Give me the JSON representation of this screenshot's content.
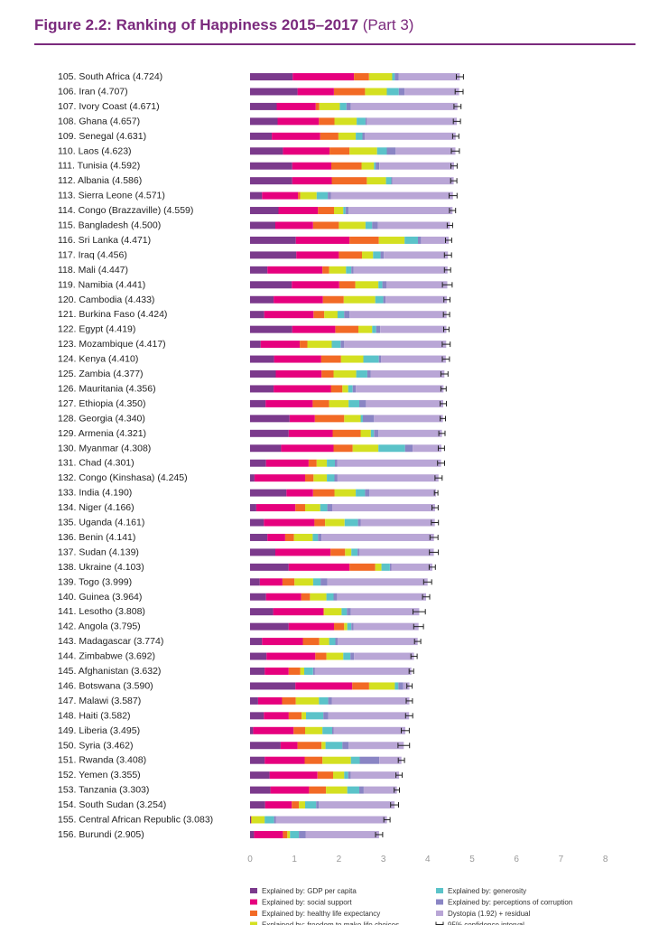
{
  "header": {
    "title_bold": "Figure 2.2: Ranking of Happiness 2015–2017",
    "title_light": "(Part 3)"
  },
  "colors": {
    "gdp": "#7b3a8c",
    "social": "#e6007e",
    "health": "#f26a25",
    "freedom": "#d4e021",
    "generosity": "#5bc3c9",
    "corruption": "#8a85c4",
    "dystopia": "#b9a6d6",
    "ci": "#222222",
    "title": "#7b2a7d"
  },
  "chart_data": {
    "type": "bar",
    "stacked": true,
    "orientation": "horizontal",
    "xlim": [
      0,
      8
    ],
    "xticks": [
      0,
      1,
      2,
      3,
      4,
      5,
      6,
      7,
      8
    ],
    "grid": false,
    "legend_position": "bottom",
    "series_names": [
      "Explained by: GDP per capita",
      "Explained by: social support",
      "Explained by: healthy life expectancy",
      "Explained by: freedom to make life choices",
      "Explained by: generosity",
      "Explained by: perceptions of corruption",
      "Dystopia (1.92) + residual",
      "95% confidence interval"
    ],
    "rows": [
      {
        "label": "105. South Africa (4.724)",
        "score": 4.724,
        "parts": [
          0.96,
          1.38,
          0.34,
          0.52,
          0.06,
          0.09
        ],
        "ci": 0.08
      },
      {
        "label": "106. Iran (4.707)",
        "score": 4.707,
        "parts": [
          1.07,
          0.82,
          0.7,
          0.49,
          0.27,
          0.13
        ],
        "ci": 0.09
      },
      {
        "label": "107. Ivory Coast (4.671)",
        "score": 4.671,
        "parts": [
          0.6,
          0.88,
          0.08,
          0.46,
          0.15,
          0.1
        ],
        "ci": 0.08
      },
      {
        "label": "108. Ghana (4.657)",
        "score": 4.657,
        "parts": [
          0.62,
          0.93,
          0.35,
          0.5,
          0.2,
          0.03
        ],
        "ci": 0.08
      },
      {
        "label": "109. Senegal (4.631)",
        "score": 4.631,
        "parts": [
          0.49,
          1.09,
          0.41,
          0.39,
          0.15,
          0.05
        ],
        "ci": 0.07
      },
      {
        "label": "110. Laos (4.623)",
        "score": 4.623,
        "parts": [
          0.74,
          1.05,
          0.45,
          0.62,
          0.22,
          0.2
        ],
        "ci": 0.09
      },
      {
        "label": "111. Tunisia (4.592)",
        "score": 4.592,
        "parts": [
          0.95,
          0.88,
          0.68,
          0.28,
          0.04,
          0.08
        ],
        "ci": 0.07
      },
      {
        "label": "112. Albania (4.586)",
        "score": 4.586,
        "parts": [
          0.95,
          0.89,
          0.79,
          0.43,
          0.12,
          0.02
        ],
        "ci": 0.07
      },
      {
        "label": "113. Sierra Leone (4.571)",
        "score": 4.571,
        "parts": [
          0.27,
          0.81,
          0.05,
          0.37,
          0.25,
          0.07
        ],
        "ci": 0.09
      },
      {
        "label": "114. Congo (Brazzaville) (4.559)",
        "score": 4.559,
        "parts": [
          0.64,
          0.89,
          0.36,
          0.21,
          0.05,
          0.07
        ],
        "ci": 0.07
      },
      {
        "label": "115. Bangladesh (4.500)",
        "score": 4.5,
        "parts": [
          0.57,
          0.85,
          0.58,
          0.6,
          0.15,
          0.13
        ],
        "ci": 0.06
      },
      {
        "label": "116. Sri Lanka (4.471)",
        "score": 4.471,
        "parts": [
          1.03,
          1.21,
          0.66,
          0.58,
          0.3,
          0.07
        ],
        "ci": 0.07
      },
      {
        "label": "117. Iraq (4.456)",
        "score": 4.456,
        "parts": [
          1.04,
          0.96,
          0.52,
          0.25,
          0.17,
          0.07
        ],
        "ci": 0.08
      },
      {
        "label": "118. Mali (4.447)",
        "score": 4.447,
        "parts": [
          0.39,
          1.24,
          0.15,
          0.38,
          0.12,
          0.05
        ],
        "ci": 0.07
      },
      {
        "label": "119. Namibia (4.441)",
        "score": 4.441,
        "parts": [
          0.94,
          1.07,
          0.36,
          0.52,
          0.09,
          0.09
        ],
        "ci": 0.11
      },
      {
        "label": "120. Cambodia (4.433)",
        "score": 4.433,
        "parts": [
          0.53,
          1.11,
          0.47,
          0.71,
          0.18,
          0.05
        ],
        "ci": 0.07
      },
      {
        "label": "121. Burkina Faso (4.424)",
        "score": 4.424,
        "parts": [
          0.32,
          1.11,
          0.24,
          0.3,
          0.15,
          0.12
        ],
        "ci": 0.07
      },
      {
        "label": "122. Egypt (4.419)",
        "score": 4.419,
        "parts": [
          0.95,
          0.97,
          0.52,
          0.31,
          0.09,
          0.09
        ],
        "ci": 0.06
      },
      {
        "label": "123. Mozambique (4.417)",
        "score": 4.417,
        "parts": [
          0.24,
          0.88,
          0.17,
          0.55,
          0.2,
          0.08
        ],
        "ci": 0.09
      },
      {
        "label": "124. Kenya (4.410)",
        "score": 4.41,
        "parts": [
          0.54,
          1.06,
          0.45,
          0.5,
          0.35,
          0.05
        ],
        "ci": 0.08
      },
      {
        "label": "125. Zambia (4.377)",
        "score": 4.377,
        "parts": [
          0.58,
          1.03,
          0.27,
          0.51,
          0.25,
          0.08
        ],
        "ci": 0.08
      },
      {
        "label": "126. Mauritania (4.356)",
        "score": 4.356,
        "parts": [
          0.53,
          1.29,
          0.26,
          0.13,
          0.1,
          0.07
        ],
        "ci": 0.06
      },
      {
        "label": "127. Ethiopia (4.350)",
        "score": 4.35,
        "parts": [
          0.35,
          1.06,
          0.37,
          0.44,
          0.24,
          0.15
        ],
        "ci": 0.07
      },
      {
        "label": "128. Georgia (4.340)",
        "score": 4.34,
        "parts": [
          0.89,
          0.57,
          0.66,
          0.37,
          0.05,
          0.25
        ],
        "ci": 0.06
      },
      {
        "label": "129. Armenia (4.321)",
        "score": 4.321,
        "parts": [
          0.87,
          0.99,
          0.63,
          0.23,
          0.07,
          0.1
        ],
        "ci": 0.07
      },
      {
        "label": "130. Myanmar (4.308)",
        "score": 4.308,
        "parts": [
          0.7,
          1.18,
          0.43,
          0.58,
          0.6,
          0.17
        ],
        "ci": 0.07
      },
      {
        "label": "131. Chad (4.301)",
        "score": 4.301,
        "parts": [
          0.36,
          0.96,
          0.18,
          0.23,
          0.18,
          0.05
        ],
        "ci": 0.08
      },
      {
        "label": "132. Congo (Kinshasa) (4.245)",
        "score": 4.245,
        "parts": [
          0.1,
          1.14,
          0.19,
          0.3,
          0.17,
          0.07
        ],
        "ci": 0.08
      },
      {
        "label": "133. India (4.190)",
        "score": 4.19,
        "parts": [
          0.82,
          0.6,
          0.48,
          0.48,
          0.21,
          0.1
        ],
        "ci": 0.04
      },
      {
        "label": "134. Niger (4.166)",
        "score": 4.166,
        "parts": [
          0.14,
          0.88,
          0.22,
          0.34,
          0.16,
          0.11
        ],
        "ci": 0.07
      },
      {
        "label": "135. Uganda (4.161)",
        "score": 4.161,
        "parts": [
          0.31,
          1.14,
          0.24,
          0.44,
          0.3,
          0.06
        ],
        "ci": 0.08
      },
      {
        "label": "136. Benin (4.141)",
        "score": 4.141,
        "parts": [
          0.39,
          0.4,
          0.2,
          0.42,
          0.12,
          0.08
        ],
        "ci": 0.09
      },
      {
        "label": "137. Sudan (4.139)",
        "score": 4.139,
        "parts": [
          0.57,
          1.24,
          0.33,
          0.14,
          0.14,
          0.04
        ],
        "ci": 0.1
      },
      {
        "label": "138. Ukraine (4.103)",
        "score": 4.103,
        "parts": [
          0.87,
          1.37,
          0.58,
          0.14,
          0.19,
          0.03
        ],
        "ci": 0.07
      },
      {
        "label": "139. Togo (3.999)",
        "score": 3.999,
        "parts": [
          0.22,
          0.51,
          0.27,
          0.42,
          0.17,
          0.15
        ],
        "ci": 0.09
      },
      {
        "label": "140. Guinea (3.964)",
        "score": 3.964,
        "parts": [
          0.36,
          0.79,
          0.2,
          0.37,
          0.16,
          0.08
        ],
        "ci": 0.08
      },
      {
        "label": "141. Lesotho (3.808)",
        "score": 3.808,
        "parts": [
          0.52,
          1.13,
          0.02,
          0.39,
          0.12,
          0.09
        ],
        "ci": 0.14
      },
      {
        "label": "142. Angola (3.795)",
        "score": 3.795,
        "parts": [
          0.87,
          1.02,
          0.23,
          0.07,
          0.09,
          0.05
        ],
        "ci": 0.11
      },
      {
        "label": "143. Madagascar (3.774)",
        "score": 3.774,
        "parts": [
          0.27,
          0.92,
          0.37,
          0.22,
          0.14,
          0.05
        ],
        "ci": 0.07
      },
      {
        "label": "144. Zimbabwe (3.692)",
        "score": 3.692,
        "parts": [
          0.37,
          1.1,
          0.25,
          0.38,
          0.16,
          0.08
        ],
        "ci": 0.07
      },
      {
        "label": "145. Afghanistan (3.632)",
        "score": 3.632,
        "parts": [
          0.33,
          0.54,
          0.26,
          0.09,
          0.2,
          0.04
        ],
        "ci": 0.05
      },
      {
        "label": "146. Botswana (3.590)",
        "score": 3.59,
        "parts": [
          1.02,
          1.28,
          0.38,
          0.58,
          0.08,
          0.11
        ],
        "ci": 0.06
      },
      {
        "label": "147. Malawi (3.587)",
        "score": 3.587,
        "parts": [
          0.18,
          0.54,
          0.31,
          0.52,
          0.21,
          0.08
        ],
        "ci": 0.07
      },
      {
        "label": "148. Haiti (3.582)",
        "score": 3.582,
        "parts": [
          0.31,
          0.56,
          0.29,
          0.1,
          0.39,
          0.11
        ],
        "ci": 0.08
      },
      {
        "label": "149. Liberia (3.495)",
        "score": 3.495,
        "parts": [
          0.07,
          0.91,
          0.26,
          0.39,
          0.22,
          0.03
        ],
        "ci": 0.09
      },
      {
        "label": "150. Syria (3.462)",
        "score": 3.462,
        "parts": [
          0.69,
          0.38,
          0.54,
          0.09,
          0.38,
          0.14
        ],
        "ci": 0.13
      },
      {
        "label": "151. Rwanda (3.408)",
        "score": 3.408,
        "parts": [
          0.33,
          0.9,
          0.4,
          0.64,
          0.2,
          0.44
        ],
        "ci": 0.07
      },
      {
        "label": "152. Yemen (3.355)",
        "score": 3.355,
        "parts": [
          0.44,
          1.08,
          0.35,
          0.25,
          0.09,
          0.06
        ],
        "ci": 0.07
      },
      {
        "label": "153. Tanzania (3.303)",
        "score": 3.303,
        "parts": [
          0.46,
          0.87,
          0.38,
          0.48,
          0.27,
          0.1
        ],
        "ci": 0.06
      },
      {
        "label": "154. South Sudan (3.254)",
        "score": 3.254,
        "parts": [
          0.34,
          0.6,
          0.16,
          0.14,
          0.25,
          0.06
        ],
        "ci": 0.09
      },
      {
        "label": "155. Central African Republic (3.083)",
        "score": 3.083,
        "parts": [
          0.02,
          0.0,
          0.01,
          0.3,
          0.21,
          0.04
        ],
        "ci": 0.07
      },
      {
        "label": "156. Burundi (2.905)",
        "score": 2.905,
        "parts": [
          0.09,
          0.65,
          0.1,
          0.06,
          0.2,
          0.15
        ],
        "ci": 0.08
      }
    ]
  }
}
